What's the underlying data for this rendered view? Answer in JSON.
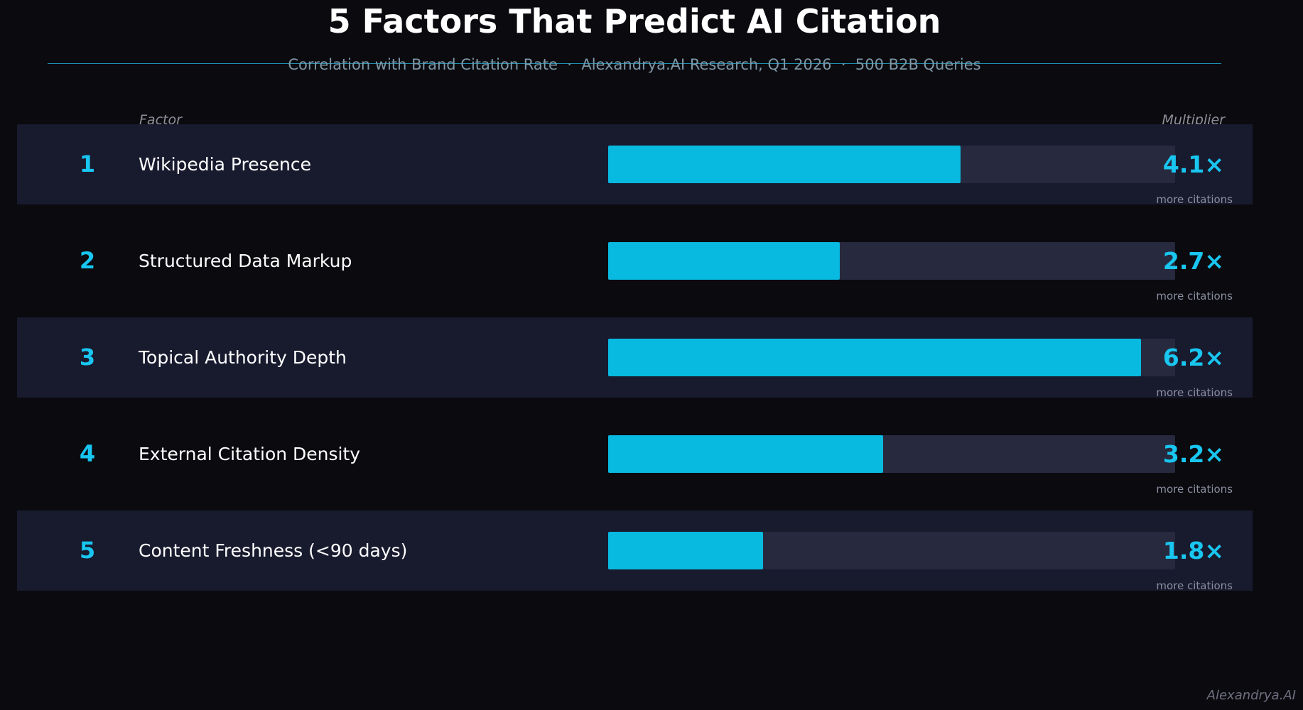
{
  "chart_data": {
    "type": "bar",
    "orientation": "horizontal",
    "title": "5 Factors That Predict AI Citation",
    "subtitle": "Correlation with Brand Citation Rate  ·  Alexandrya.AI Research, Q1 2026  ·  500 B2B Queries",
    "column_headers": {
      "factor": "Factor",
      "multiplier": "Multiplier"
    },
    "value_caption": "more citations",
    "xlim": [
      0,
      6.6
    ],
    "grid": false,
    "rows": [
      {
        "rank": "1",
        "factor": "Wikipedia Presence",
        "value": 4.1,
        "label": "4.1×"
      },
      {
        "rank": "2",
        "factor": "Structured Data Markup",
        "value": 2.7,
        "label": "2.7×"
      },
      {
        "rank": "3",
        "factor": "Topical Authority Depth",
        "value": 6.2,
        "label": "6.2×"
      },
      {
        "rank": "4",
        "factor": "External Citation Density",
        "value": 3.2,
        "label": "3.2×"
      },
      {
        "rank": "5",
        "factor": "Content Freshness (<90 days)",
        "value": 1.8,
        "label": "1.8×"
      }
    ]
  },
  "watermark": "Alexandrya.AI",
  "colors": {
    "background": "#0a0a0f",
    "row_shade": "#181a2e",
    "accent": "#18c6f0",
    "bar_fill": "#08b9e0",
    "bar_track": "#272a3e",
    "divider": "#1f8fb0"
  }
}
